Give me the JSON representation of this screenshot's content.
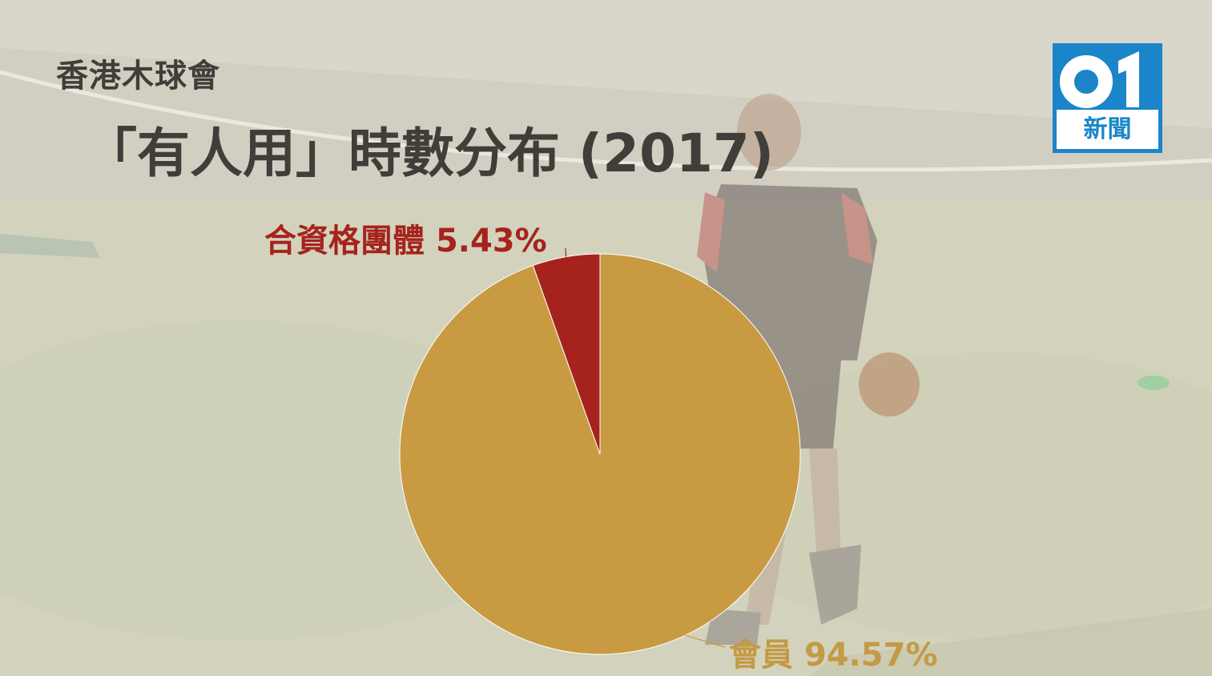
{
  "header": {
    "subtitle": "香港木球會",
    "title": "「有人用」時數分布 (2017)"
  },
  "logo": {
    "number": "01",
    "text": "新聞",
    "color": "#1a85c9"
  },
  "chart_data": {
    "type": "pie",
    "title": "「有人用」時數分布 (2017)",
    "subtitle": "香港木球會",
    "slices": [
      {
        "label": "會員",
        "value": 94.57,
        "display": "94.57%",
        "color": "#c89a42"
      },
      {
        "label": "合資格團體",
        "value": 5.43,
        "display": "5.43%",
        "color": "#a6231d"
      }
    ],
    "legend": "none"
  }
}
